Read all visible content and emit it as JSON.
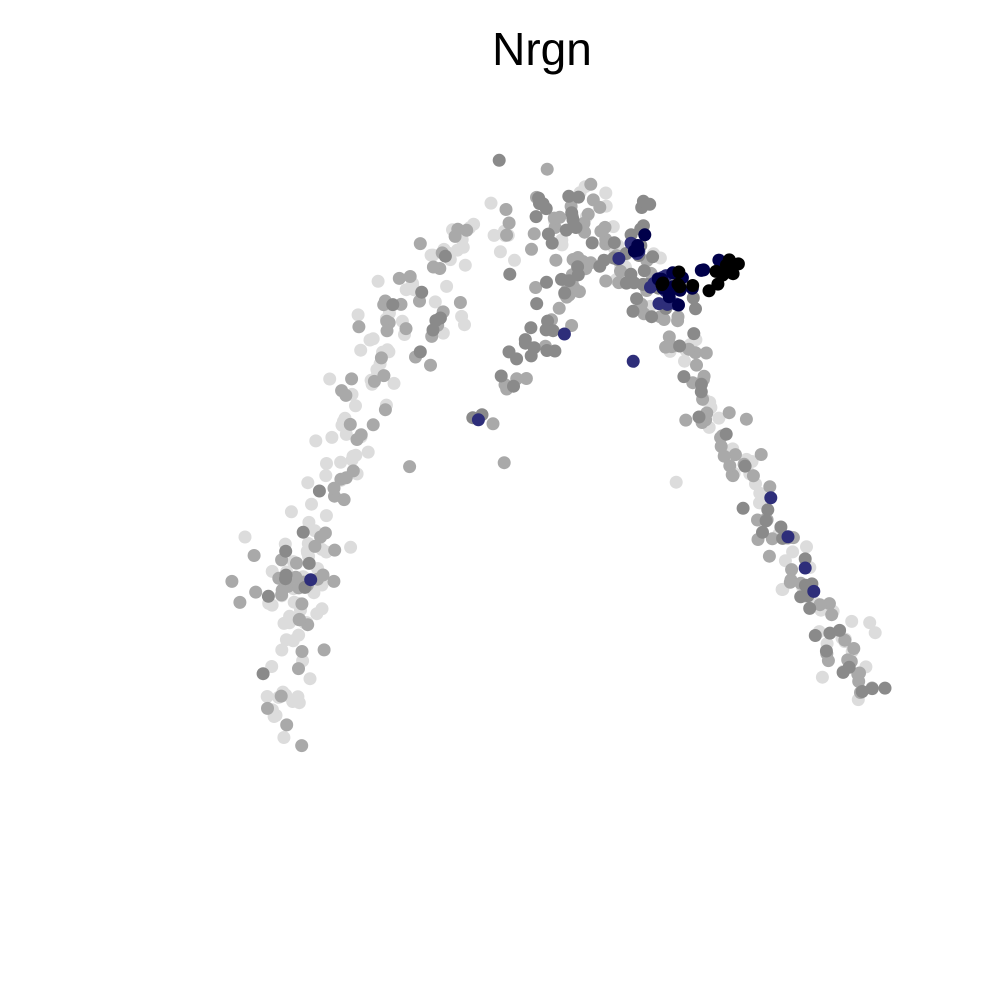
{
  "chart_data": {
    "type": "scatter",
    "title": "Nrgn",
    "xlabel": "",
    "ylabel": "",
    "axes": "none",
    "grid": false,
    "legend": "none",
    "xlim": [
      0,
      1
    ],
    "ylim": [
      0,
      1
    ],
    "expression_colors": {
      "none": "#dcdcdc",
      "low": "#a9a9a9",
      "mid": "#8a8a8a",
      "high": "#2e2e7a",
      "max": "#00004a",
      "top": "#000000"
    },
    "segments": [
      {
        "name": "left-arm",
        "path": [
          [
            0.195,
            0.18
          ],
          [
            0.22,
            0.26
          ],
          [
            0.23,
            0.36
          ],
          [
            0.26,
            0.48
          ],
          [
            0.29,
            0.57
          ],
          [
            0.31,
            0.64
          ],
          [
            0.34,
            0.74
          ],
          [
            0.41,
            0.82
          ],
          [
            0.49,
            0.83
          ]
        ],
        "spread": 0.018,
        "density": 22,
        "level_weights": {
          "none": 0.62,
          "low": 0.32,
          "mid": 0.06
        }
      },
      {
        "name": "left-blob",
        "path": [
          [
            0.19,
            0.37
          ],
          [
            0.24,
            0.4
          ],
          [
            0.27,
            0.39
          ]
        ],
        "spread": 0.022,
        "density": 40,
        "level_weights": {
          "none": 0.55,
          "low": 0.38,
          "mid": 0.07
        }
      },
      {
        "name": "peak",
        "path": [
          [
            0.49,
            0.83
          ],
          [
            0.53,
            0.82
          ],
          [
            0.56,
            0.86
          ],
          [
            0.59,
            0.82
          ],
          [
            0.61,
            0.79
          ]
        ],
        "spread": 0.03,
        "density": 45,
        "level_weights": {
          "none": 0.15,
          "low": 0.45,
          "mid": 0.4
        }
      },
      {
        "name": "branch-1",
        "path": [
          [
            0.55,
            0.78
          ],
          [
            0.53,
            0.72
          ],
          [
            0.5,
            0.68
          ],
          [
            0.48,
            0.64
          ]
        ],
        "spread": 0.012,
        "density": 22,
        "level_weights": {
          "low": 0.5,
          "mid": 0.5
        }
      },
      {
        "name": "branch-2",
        "path": [
          [
            0.42,
            0.74
          ],
          [
            0.4,
            0.71
          ],
          [
            0.38,
            0.67
          ]
        ],
        "spread": 0.012,
        "density": 18,
        "level_weights": {
          "none": 0.3,
          "low": 0.5,
          "mid": 0.2
        }
      },
      {
        "name": "branch-3",
        "path": [
          [
            0.46,
            0.6
          ],
          [
            0.44,
            0.58
          ]
        ],
        "spread": 0.012,
        "density": 12,
        "level_weights": {
          "low": 0.6,
          "mid": 0.4
        }
      },
      {
        "name": "right-arm",
        "path": [
          [
            0.61,
            0.79
          ],
          [
            0.66,
            0.71
          ],
          [
            0.72,
            0.57
          ],
          [
            0.76,
            0.5
          ],
          [
            0.8,
            0.42
          ],
          [
            0.83,
            0.36
          ],
          [
            0.86,
            0.31
          ],
          [
            0.89,
            0.22
          ]
        ],
        "spread": 0.014,
        "density": 24,
        "level_weights": {
          "none": 0.35,
          "low": 0.45,
          "mid": 0.2
        }
      },
      {
        "name": "right-high",
        "path": [
          [
            0.6,
            0.82
          ],
          [
            0.63,
            0.79
          ],
          [
            0.66,
            0.76
          ],
          [
            0.68,
            0.72
          ]
        ],
        "spread": 0.016,
        "density": 30,
        "level_weights": {
          "mid": 0.4,
          "high": 0.35,
          "max": 0.25
        }
      },
      {
        "name": "tip",
        "path": [
          [
            0.66,
            0.76
          ],
          [
            0.7,
            0.77
          ],
          [
            0.74,
            0.79
          ]
        ],
        "spread": 0.01,
        "density": 30,
        "level_weights": {
          "max": 0.3,
          "top": 0.7
        }
      }
    ],
    "isolated_points": [
      {
        "x": 0.245,
        "y": 0.385,
        "level": "high"
      },
      {
        "x": 0.54,
        "y": 0.7,
        "level": "high"
      },
      {
        "x": 0.62,
        "y": 0.665,
        "level": "high"
      },
      {
        "x": 0.44,
        "y": 0.59,
        "level": "high"
      },
      {
        "x": 0.78,
        "y": 0.49,
        "level": "high"
      },
      {
        "x": 0.8,
        "y": 0.44,
        "level": "high"
      },
      {
        "x": 0.82,
        "y": 0.4,
        "level": "high"
      },
      {
        "x": 0.83,
        "y": 0.37,
        "level": "high"
      },
      {
        "x": 0.36,
        "y": 0.53,
        "level": "low"
      },
      {
        "x": 0.47,
        "y": 0.535,
        "level": "low"
      },
      {
        "x": 0.67,
        "y": 0.51,
        "level": "none"
      },
      {
        "x": 0.84,
        "y": 0.26,
        "level": "none"
      },
      {
        "x": 0.895,
        "y": 0.33,
        "level": "none"
      }
    ]
  }
}
